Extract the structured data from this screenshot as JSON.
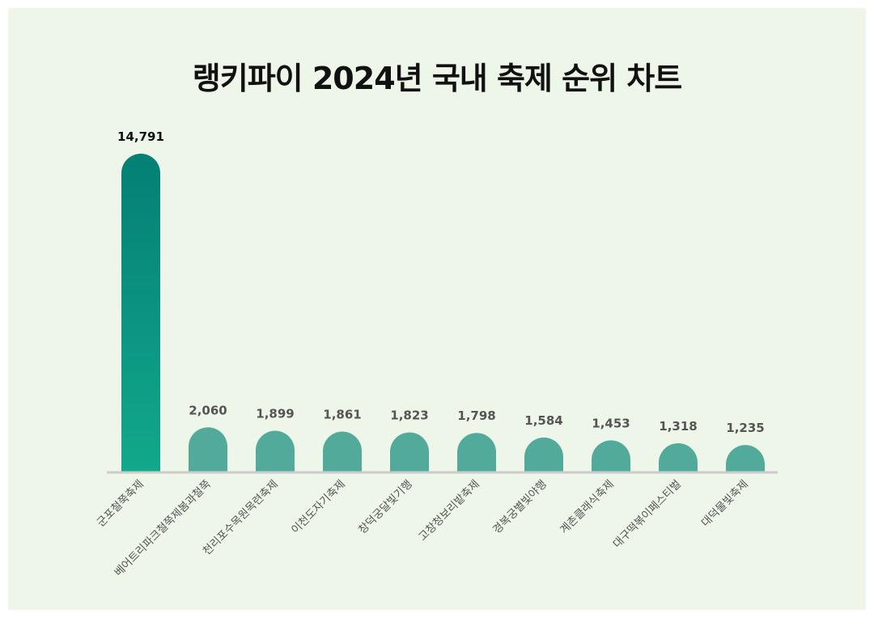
{
  "chart_data": {
    "type": "bar",
    "title": "랭키파이 2024년 국내 축제 순위 차트",
    "categories": [
      "군포철쭉축제",
      "베어트리파크철쭉제봄과철쭉",
      "천리포수목원목련축제",
      "이천도자기축제",
      "창덕궁달빛기행",
      "고창청보리밭축제",
      "경복궁별빛야행",
      "계촌클래식축제",
      "대구떡볶이페스티벌",
      "대덕물빛축제"
    ],
    "values": [
      14791,
      2060,
      1899,
      1861,
      1823,
      1798,
      1584,
      1453,
      1318,
      1235
    ],
    "value_labels": [
      "14,791",
      "2,060",
      "1,899",
      "1,861",
      "1,823",
      "1,798",
      "1,584",
      "1,453",
      "1,318",
      "1,235"
    ],
    "ylim": [
      0,
      14791
    ],
    "grid": false,
    "colors": {
      "top_bar_gradient": [
        "#047f74",
        "#12a88c"
      ],
      "other_bars": "#52ab9a",
      "top_label": "#111111",
      "other_labels": "#555555",
      "baseline": "#cccccc",
      "background": "#eef5e9"
    }
  }
}
